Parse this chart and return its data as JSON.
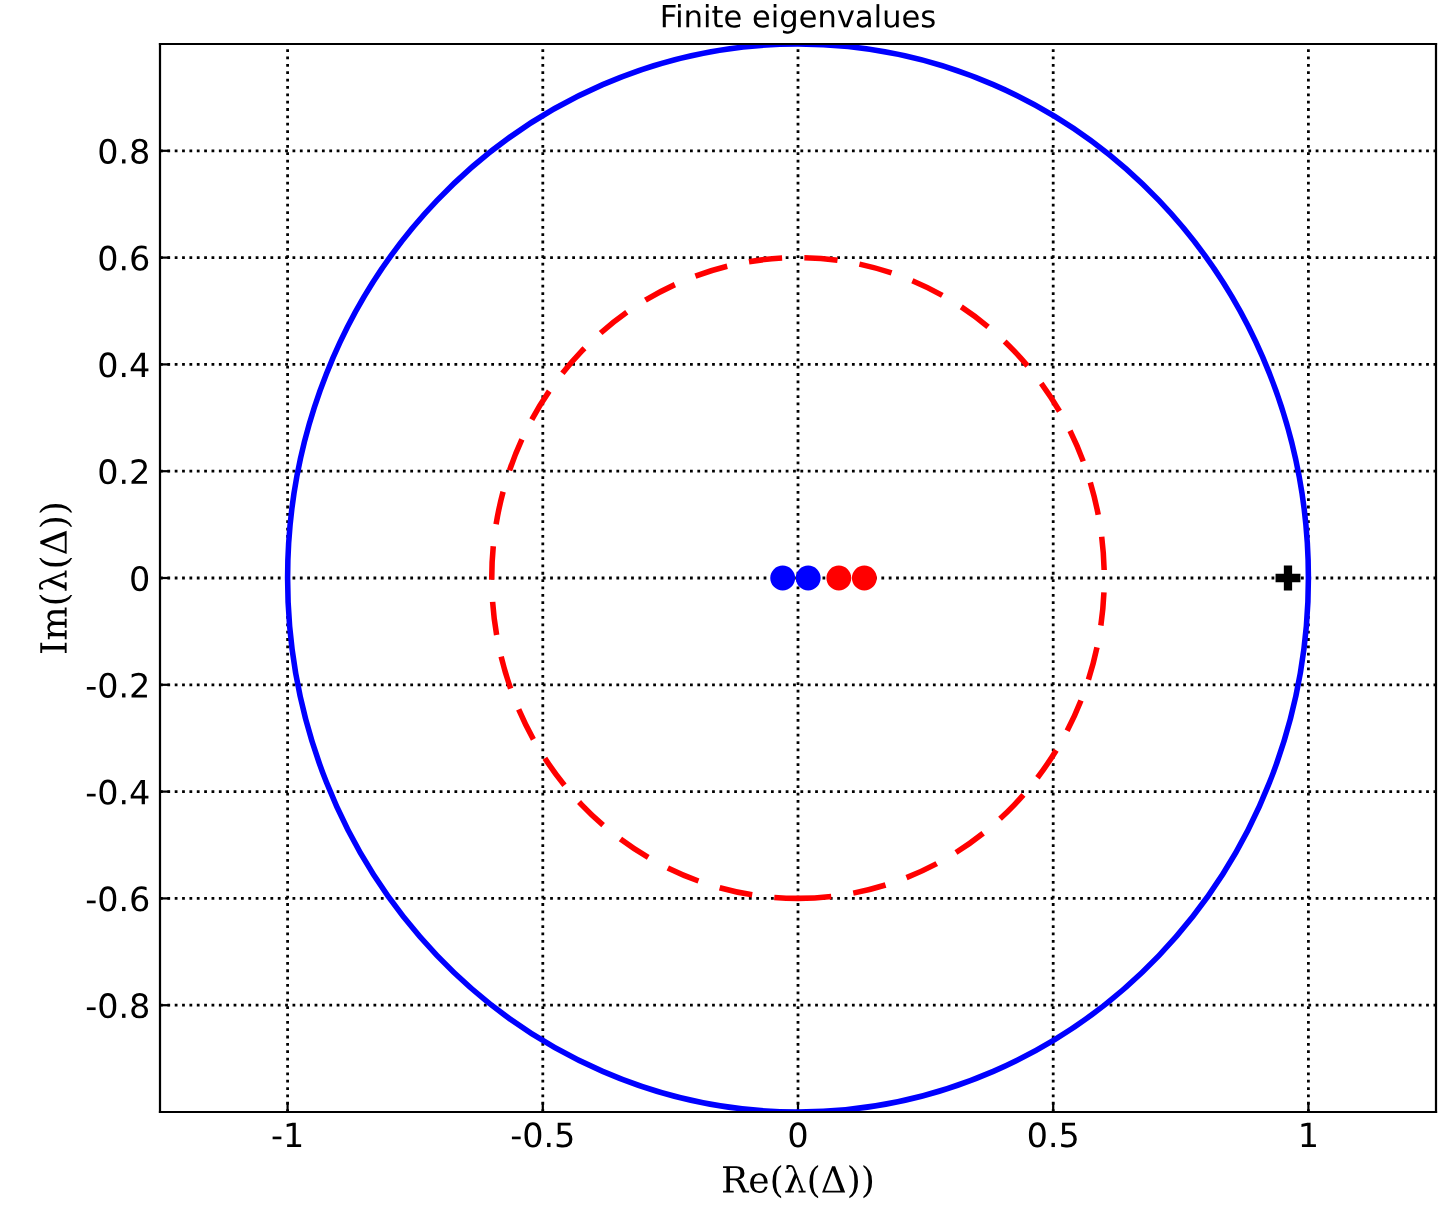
{
  "chart_data": {
    "type": "scatter",
    "title": "Finite eigenvalues",
    "xlabel": "Re(λ(Δ))",
    "ylabel": "Im(λ(Δ))",
    "xlim": [
      -1.25,
      1.25
    ],
    "ylim": [
      -1,
      1
    ],
    "xticks": [
      -1,
      -0.5,
      0,
      0.5,
      1
    ],
    "yticks": [
      -0.8,
      -0.6,
      -0.4,
      -0.2,
      0,
      0.2,
      0.4,
      0.6,
      0.8
    ],
    "grid": true,
    "series": [
      {
        "color": "#0000ff",
        "marker": "circle",
        "x": [
          -0.03,
          0.02
        ],
        "values": [
          0,
          0
        ]
      },
      {
        "color": "#ff0000",
        "marker": "circle",
        "x": [
          0.08,
          0.13
        ],
        "values": [
          0,
          0
        ]
      },
      {
        "color": "#000000",
        "marker": "cross",
        "x": [
          0.96
        ],
        "values": [
          0
        ]
      }
    ]
  }
}
